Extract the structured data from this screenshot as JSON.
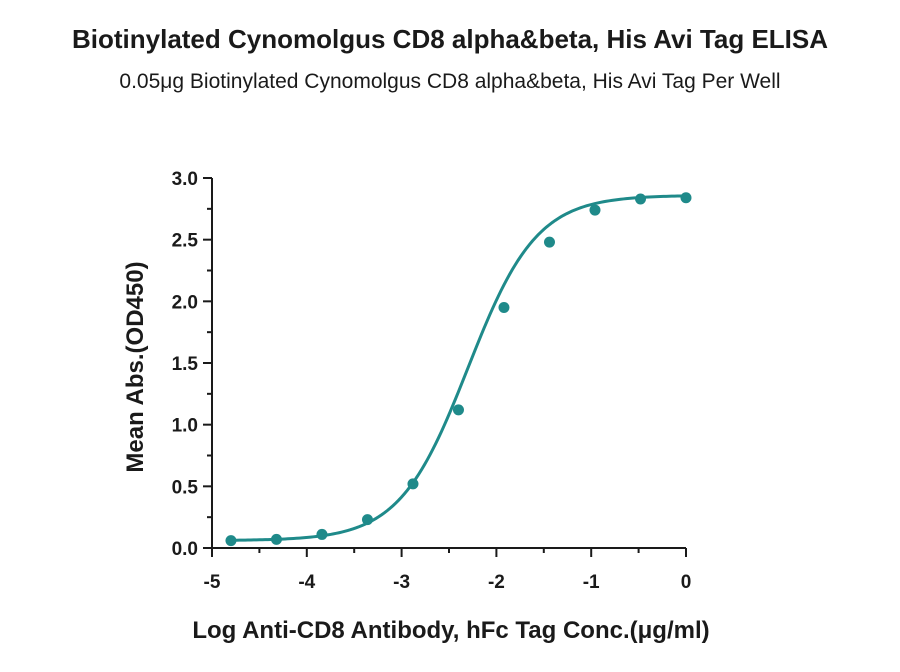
{
  "chart_data": {
    "type": "scatter",
    "title": "Biotinylated Cynomolgus CD8 alpha&beta, His Avi Tag ELISA",
    "subtitle": "0.05μg Biotinylated Cynomolgus CD8 alpha&beta, His Avi Tag Per Well",
    "xlabel": "Log Anti-CD8 Antibody, hFc Tag Conc.(μg/ml)",
    "ylabel": "Mean Abs.(OD450)",
    "xlim": [
      -5,
      0
    ],
    "ylim": [
      0,
      3
    ],
    "xticks": [
      -5,
      -4,
      -3,
      -2,
      -1,
      0
    ],
    "yticks": [
      0,
      0.5,
      1,
      1.5,
      2,
      2.5,
      3
    ],
    "xtick_labels": [
      "-5",
      "-4",
      "-3",
      "-2",
      "-1",
      "0"
    ],
    "ytick_labels": [
      "0.0",
      "0.5",
      "1.0",
      "1.5",
      "2.0",
      "2.5",
      "3.0"
    ],
    "grid": false,
    "fit": "four-parameter logistic curve",
    "color": "#1f8a8a",
    "series": [
      {
        "x": [
          -4.8,
          -4.32,
          -3.84,
          -3.36,
          -2.88,
          -2.4,
          -1.92,
          -1.44,
          -0.96,
          -0.48,
          0
        ],
        "y": [
          0.06,
          0.07,
          0.11,
          0.23,
          0.52,
          1.12,
          1.95,
          2.48,
          2.74,
          2.83,
          2.84
        ]
      }
    ],
    "curve": {
      "bottom": 0.06,
      "top": 2.86,
      "log_ec50": -2.3,
      "hill_slope": 1.2
    }
  }
}
